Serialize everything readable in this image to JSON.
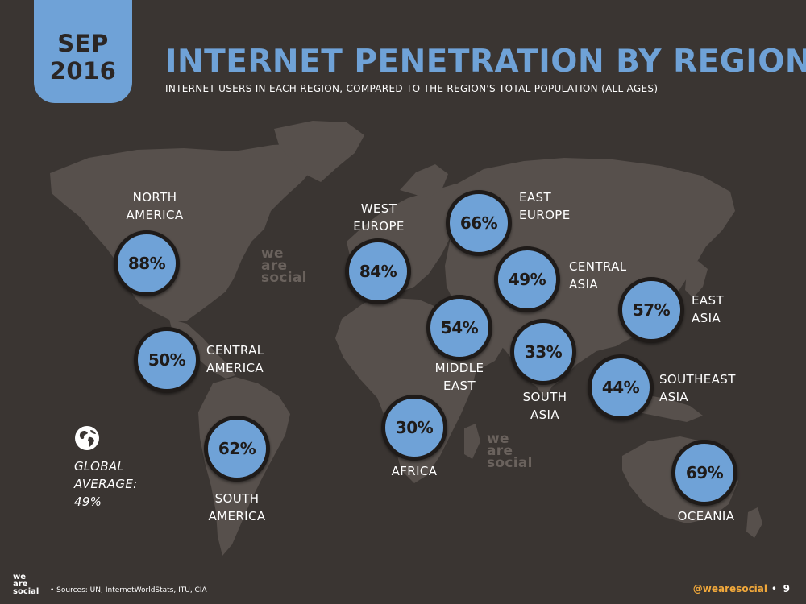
{
  "header": {
    "month": "SEP",
    "year": "2016",
    "title": "INTERNET PENETRATION BY REGION",
    "subtitle": "INTERNET USERS IN EACH REGION, COMPARED TO THE REGION'S TOTAL POPULATION (ALL AGES)"
  },
  "watermark": {
    "line1": "we",
    "line2": "are",
    "line3": "social"
  },
  "global": {
    "text": "GLOBAL\nAVERAGE:\n49%"
  },
  "footer": {
    "logo_line1": "we",
    "logo_line2": "are",
    "logo_line3": "social",
    "sources": "• Sources: UN; InternetWorldStats, ITU, CIA",
    "handle": "@wearesocial",
    "separator": "•",
    "page": "9"
  },
  "colors": {
    "background": "#3a3532",
    "land": "#57504c",
    "accent": "#6fa2d7",
    "handle": "#f2a93b"
  },
  "chart_data": {
    "type": "map",
    "unit": "%",
    "regions": [
      {
        "name": "NORTH\nAMERICA",
        "value": 88,
        "display": "88%"
      },
      {
        "name": "CENTRAL\nAMERICA",
        "value": 50,
        "display": "50%"
      },
      {
        "name": "SOUTH\nAMERICA",
        "value": 62,
        "display": "62%"
      },
      {
        "name": "WEST\nEUROPE",
        "value": 84,
        "display": "84%"
      },
      {
        "name": "EAST\nEUROPE",
        "value": 66,
        "display": "66%"
      },
      {
        "name": "CENTRAL\nASIA",
        "value": 49,
        "display": "49%"
      },
      {
        "name": "MIDDLE\nEAST",
        "value": 54,
        "display": "54%"
      },
      {
        "name": "SOUTH\nASIA",
        "value": 33,
        "display": "33%"
      },
      {
        "name": "AFRICA",
        "value": 30,
        "display": "30%"
      },
      {
        "name": "EAST\nASIA",
        "value": 57,
        "display": "57%"
      },
      {
        "name": "SOUTHEAST\nASIA",
        "value": 44,
        "display": "44%"
      },
      {
        "name": "OCEANIA",
        "value": 69,
        "display": "69%"
      }
    ],
    "global_average": 49
  }
}
